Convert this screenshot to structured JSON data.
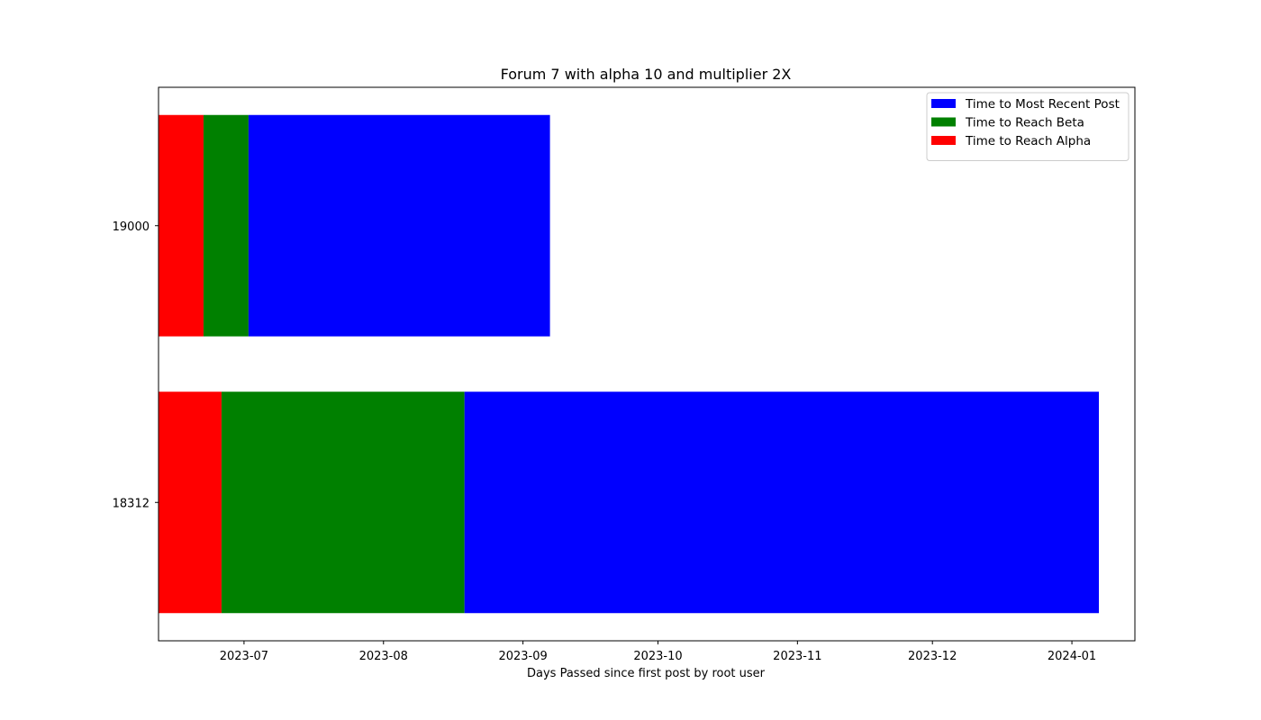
{
  "chart_data": {
    "type": "bar",
    "orientation": "horizontal",
    "stacked": true,
    "title": "Forum 7 with alpha 10 and multiplier 2X",
    "xlabel": "Days Passed since first post by root user",
    "ylabel": "",
    "categories": [
      "18312",
      "19000"
    ],
    "x_axis_type": "date",
    "xlim": [
      "2023-06-12",
      "2024-01-15"
    ],
    "x_ticks": [
      "2023-07",
      "2023-08",
      "2023-09",
      "2023-10",
      "2023-11",
      "2023-12",
      "2024-01"
    ],
    "series": [
      {
        "name": "Time to Reach Alpha",
        "color": "#ff0000",
        "segments": [
          {
            "category": "18312",
            "start": "2023-06-12",
            "end": "2023-06-26"
          },
          {
            "category": "19000",
            "start": "2023-06-12",
            "end": "2023-06-22"
          }
        ]
      },
      {
        "name": "Time to Reach Beta",
        "color": "#008000",
        "segments": [
          {
            "category": "18312",
            "start": "2023-06-26",
            "end": "2023-08-19"
          },
          {
            "category": "19000",
            "start": "2023-06-22",
            "end": "2023-07-02"
          }
        ]
      },
      {
        "name": "Time to Most Recent Post",
        "color": "#0000ff",
        "segments": [
          {
            "category": "18312",
            "start": "2023-08-19",
            "end": "2024-01-07"
          },
          {
            "category": "19000",
            "start": "2023-07-02",
            "end": "2023-09-07"
          }
        ]
      }
    ],
    "legend": {
      "position": "top-right",
      "entries": [
        "Time to Most Recent Post",
        "Time to Reach Beta",
        "Time to Reach Alpha"
      ]
    },
    "grid": false
  }
}
